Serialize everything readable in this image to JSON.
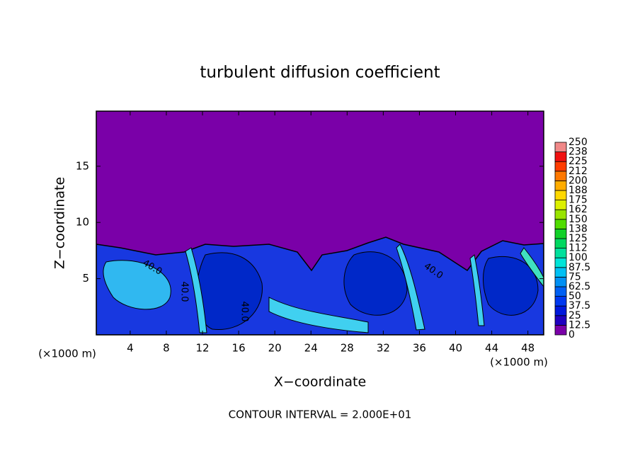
{
  "chart_data": {
    "type": "contour",
    "title": "turbulent diffusion coefficient",
    "x_label": "X−coordinate",
    "y_label": "Z−coordinate",
    "x_unit_label": "(×1000 m)",
    "y_unit_label": "(×1000 m)",
    "annotation": "CONTOUR INTERVAL = 2.000E+01",
    "contour_labels": [
      "40.0",
      "40.0",
      "40.0",
      "40.0"
    ],
    "xlim": [
      0.25,
      49.75
    ],
    "xticks": [
      4,
      8,
      12,
      16,
      20,
      24,
      28,
      32,
      36,
      40,
      44,
      48
    ],
    "ylim": [
      0,
      19.9
    ],
    "yticks": [
      5,
      10,
      15
    ],
    "colorbar": {
      "levels": [
        0,
        12.5,
        25,
        37.5,
        50,
        62.5,
        75,
        87.5,
        100,
        {
          "value": 112.5,
          "label": "112"
        },
        125,
        {
          "value": 137.5,
          "label": "138"
        },
        150,
        {
          "value": 162.5,
          "label": "162"
        },
        175,
        {
          "value": 187.5,
          "label": "188"
        },
        200,
        {
          "value": 212.5,
          "label": "212"
        },
        225,
        {
          "value": 237.5,
          "label": "238"
        },
        250
      ],
      "colors": [
        "#7a00a8",
        "#2000c0",
        "#0018dc",
        "#0038f0",
        "#0060f4",
        "#0090f4",
        "#00c0f4",
        "#00e4d8",
        "#00e09c",
        "#00d860",
        "#10d028",
        "#50dc00",
        "#98e400",
        "#dcf000",
        "#ffd800",
        "#ffac00",
        "#ff7800",
        "#ff3c00",
        "#f01010",
        "#f08888"
      ]
    }
  }
}
